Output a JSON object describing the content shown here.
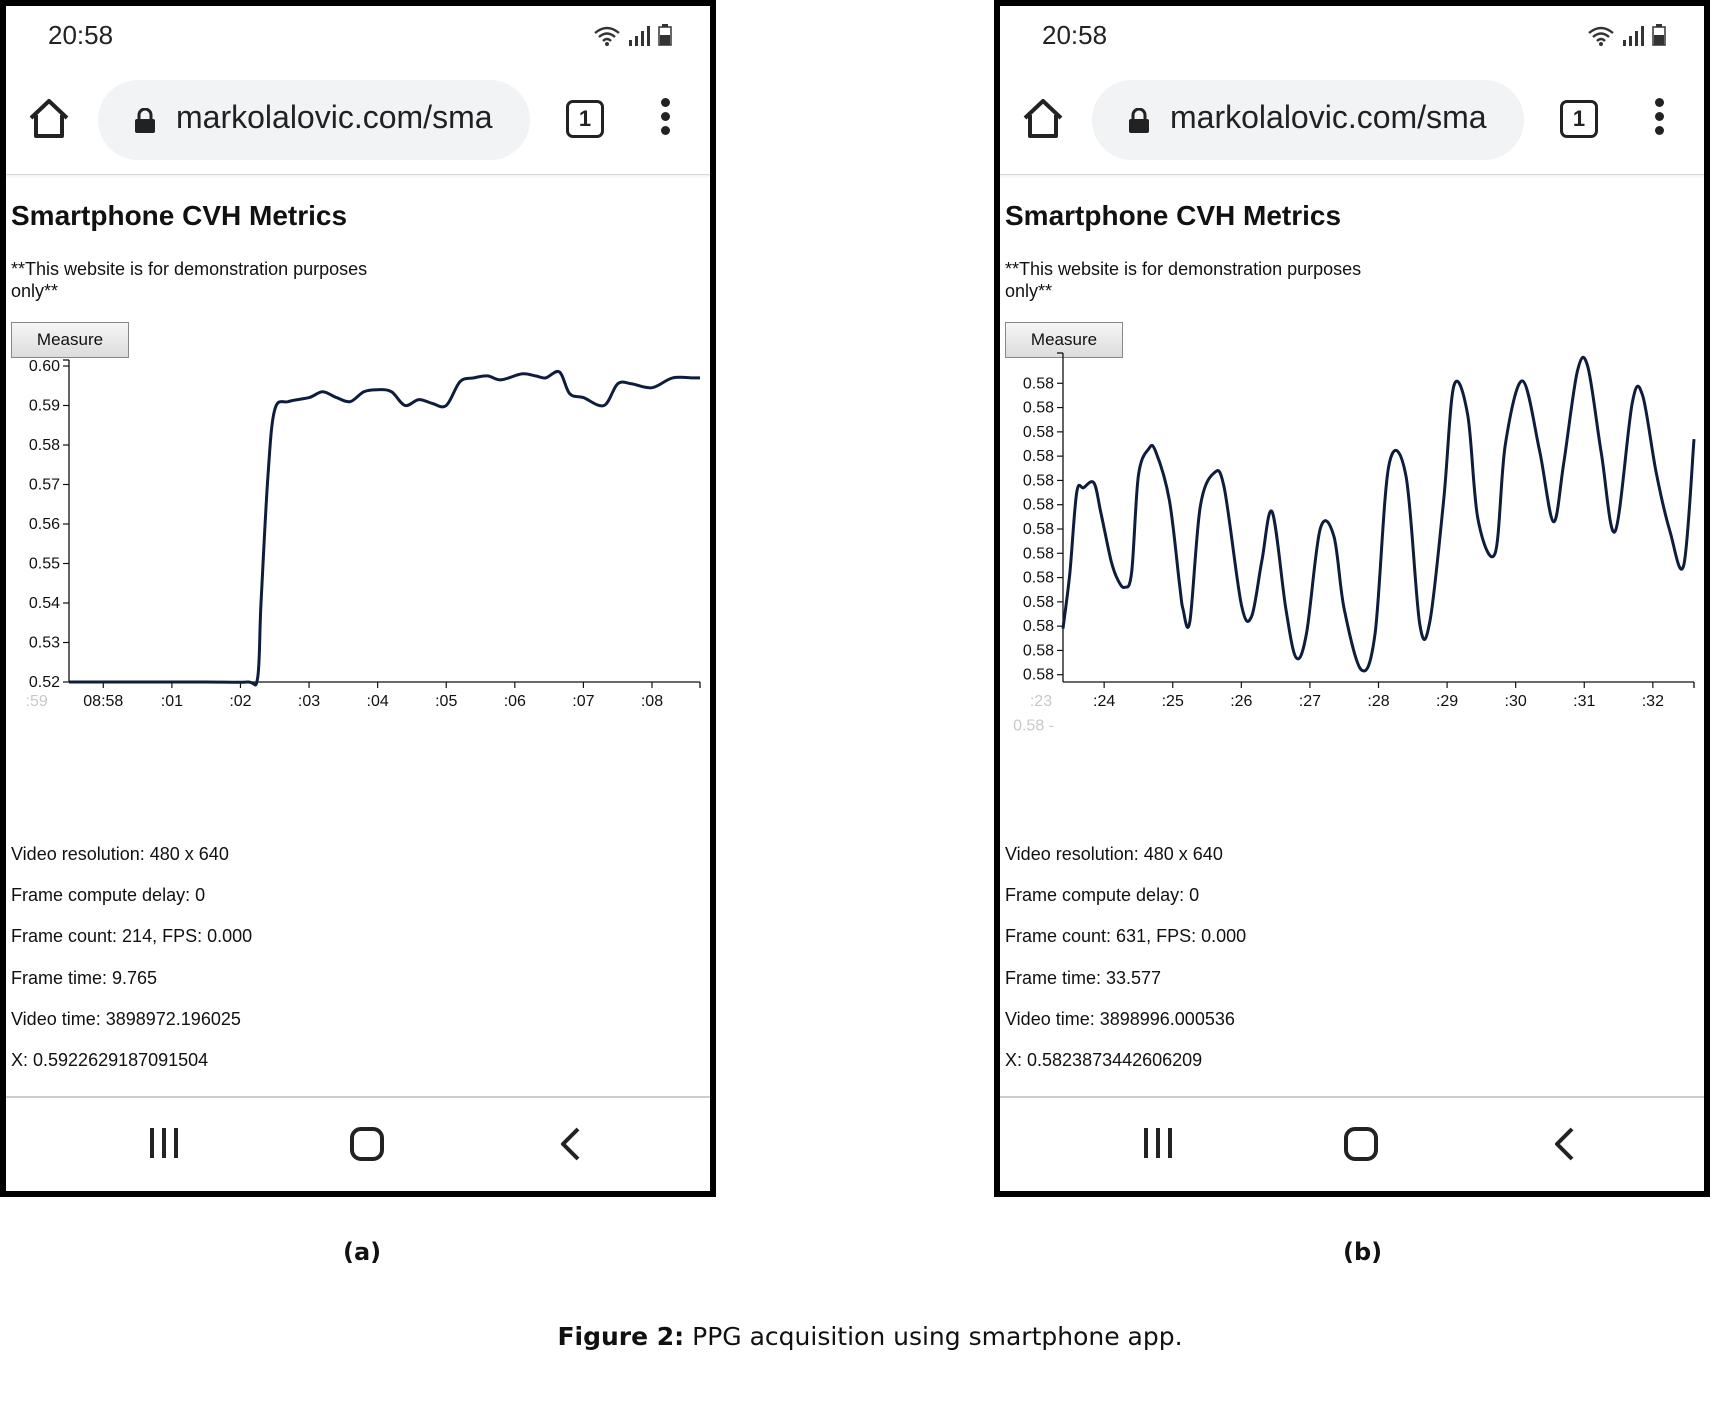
{
  "panels": [
    {
      "id": "a",
      "status_time": "20:58",
      "url": "markolalovic.com/sma",
      "tab_count": "1",
      "page_title": "Smartphone CVH Metrics",
      "disclaimer": "**This website is for demonstration purposes only**",
      "measure_label": "Measure",
      "metrics": [
        "Video resolution: 480 x 640",
        "Frame compute delay: 0",
        "Frame count: 214, FPS: 0.000",
        "Frame time: 9.765",
        "Video time: 3898972.196025",
        "X: 0.5922629187091504"
      ],
      "sublabel": "(a)",
      "chart_data": {
        "type": "line",
        "ylim": [
          0.52,
          0.6
        ],
        "xlim": [
          0,
          9.2
        ],
        "y_ticks": [
          0.6,
          0.59,
          0.58,
          0.57,
          0.56,
          0.55,
          0.54,
          0.53,
          0.52
        ],
        "y_tick_labels": [
          "0.60",
          "0.59",
          "0.58",
          "0.57",
          "0.56",
          "0.55",
          "0.54",
          "0.53",
          "0.52"
        ],
        "x_ticks": [
          0.5,
          1.5,
          2.5,
          3.5,
          4.5,
          5.5,
          6.5,
          7.5,
          8.5
        ],
        "x_tick_labels": [
          "08:58",
          ":01",
          ":02",
          ":03",
          ":04",
          ":05",
          ":06",
          ":07",
          ":08"
        ],
        "faded_x_labels": [
          {
            "x": -0.5,
            "label": ":59"
          }
        ],
        "faded_y_labels": [],
        "x": [
          0,
          1,
          2,
          2.6,
          2.75,
          2.8,
          2.9,
          3.0,
          3.2,
          3.5,
          3.7,
          3.9,
          4.1,
          4.3,
          4.5,
          4.7,
          4.9,
          5.1,
          5.3,
          5.5,
          5.7,
          5.9,
          6.1,
          6.3,
          6.6,
          6.8,
          6.95,
          7.15,
          7.3,
          7.5,
          7.8,
          8.0,
          8.2,
          8.5,
          8.8,
          9.1,
          9.2
        ],
        "y": [
          0.52,
          0.52,
          0.52,
          0.52,
          0.521,
          0.54,
          0.572,
          0.589,
          0.591,
          0.592,
          0.5935,
          0.592,
          0.591,
          0.5935,
          0.594,
          0.5935,
          0.59,
          0.5915,
          0.5905,
          0.59,
          0.596,
          0.597,
          0.5975,
          0.5965,
          0.598,
          0.5975,
          0.597,
          0.5985,
          0.593,
          0.592,
          0.59,
          0.5955,
          0.5955,
          0.5945,
          0.597,
          0.597,
          0.597
        ]
      }
    },
    {
      "id": "b",
      "status_time": "20:58",
      "url": "markolalovic.com/sma",
      "tab_count": "1",
      "page_title": "Smartphone CVH Metrics",
      "disclaimer": "**This website is for demonstration purposes only**",
      "measure_label": "Measure",
      "metrics": [
        "Video resolution: 480 x 640",
        "Frame compute delay: 0",
        "Frame count: 631, FPS: 0.000",
        "Frame time: 33.577",
        "Video time: 3898996.000536",
        "X: 0.5823873442606209"
      ],
      "sublabel": "(b)",
      "chart_data": {
        "type": "line",
        "ylim": [
          0,
          13.3
        ],
        "xlim": [
          0,
          9.2
        ],
        "y_ticks": [
          12.3,
          11.3,
          10.3,
          9.3,
          8.3,
          7.3,
          6.3,
          5.3,
          4.3,
          3.3,
          2.3,
          1.3,
          0.3
        ],
        "y_tick_labels": [
          "0.58",
          "0.58",
          "0.58",
          "0.58",
          "0.58",
          "0.58",
          "0.58",
          "0.58",
          "0.58",
          "0.58",
          "0.58",
          "0.58",
          "0.58"
        ],
        "x_ticks": [
          0.6,
          1.6,
          2.6,
          3.6,
          4.6,
          5.6,
          6.6,
          7.6,
          8.6
        ],
        "x_tick_labels": [
          ":24",
          ":25",
          ":26",
          ":27",
          ":28",
          ":29",
          ":30",
          ":31",
          ":32"
        ],
        "faded_x_labels": [
          {
            "x": -0.35,
            "label": ":23"
          }
        ],
        "faded_y_labels": [
          {
            "y": -1.8,
            "label": "0.58"
          }
        ],
        "x": [
          0,
          0.1,
          0.2,
          0.3,
          0.45,
          0.55,
          0.7,
          0.8,
          0.9,
          1.0,
          1.1,
          1.25,
          1.35,
          1.55,
          1.7,
          1.75,
          1.85,
          2.0,
          2.2,
          2.35,
          2.6,
          2.75,
          2.9,
          3.05,
          3.25,
          3.4,
          3.55,
          3.75,
          3.95,
          4.1,
          4.35,
          4.55,
          4.75,
          5.0,
          5.2,
          5.35,
          5.55,
          5.7,
          5.9,
          6.05,
          6.3,
          6.45,
          6.7,
          6.95,
          7.15,
          7.3,
          7.5,
          7.65,
          7.85,
          8.05,
          8.3,
          8.45,
          8.65,
          8.85,
          9.05,
          9.2
        ],
        "y": [
          2.2,
          4.5,
          7.8,
          8.0,
          8.2,
          7.0,
          5.0,
          4.2,
          3.9,
          4.5,
          8.5,
          9.6,
          9.5,
          7.5,
          4.0,
          3.0,
          2.5,
          7.2,
          8.6,
          8.0,
          3.2,
          2.7,
          5.0,
          7.0,
          3.0,
          1.0,
          2.0,
          6.3,
          6.0,
          3.0,
          0.5,
          2.0,
          8.9,
          8.5,
          2.4,
          2.5,
          7.5,
          12.2,
          11.0,
          6.7,
          5.3,
          9.8,
          12.4,
          9.5,
          6.6,
          9.0,
          12.8,
          13.0,
          9.4,
          6.2,
          11.5,
          11.8,
          8.6,
          6.2,
          4.8,
          10.0
        ]
      }
    }
  ],
  "caption_bold": "Figure 2:",
  "caption_text": " PPG acquisition using smartphone app."
}
